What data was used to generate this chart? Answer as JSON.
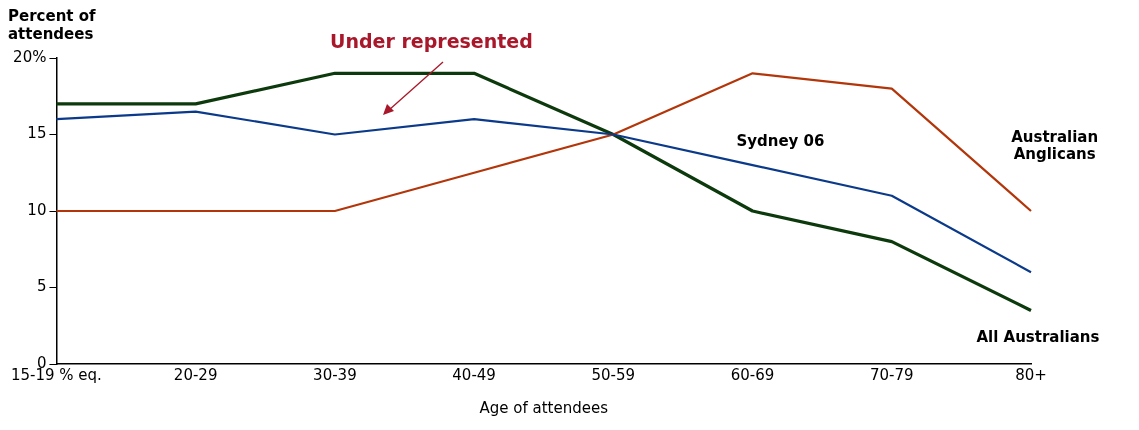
{
  "chart_data": {
    "type": "line",
    "ylabel": "Percent of attendees",
    "xlabel": "Age of attendees",
    "categories": [
      "15-19 % eq.",
      "20-29",
      "30-39",
      "40-49",
      "50-59",
      "60-69",
      "70-79",
      "80+"
    ],
    "series": [
      {
        "name": "Sydney 06",
        "color": "#0b3a8a",
        "values": [
          16,
          16.5,
          15,
          16,
          15,
          13,
          11,
          6
        ]
      },
      {
        "name": "Australian Anglicans",
        "color": "#b3360a",
        "values": [
          10,
          10,
          10,
          12.5,
          15,
          19,
          18,
          10
        ]
      },
      {
        "name": "All Australians",
        "color": "#0d3a0d",
        "values": [
          17,
          17,
          19,
          19,
          15,
          10,
          8,
          3.5
        ]
      }
    ],
    "ylim": [
      0,
      20
    ],
    "yticks": [
      0,
      5,
      10,
      15,
      {
        "value": 20,
        "label": "20%"
      }
    ],
    "grid": false,
    "legend": false,
    "marker": "none",
    "line_style": "solid",
    "annotations": [
      "Under represented"
    ]
  }
}
